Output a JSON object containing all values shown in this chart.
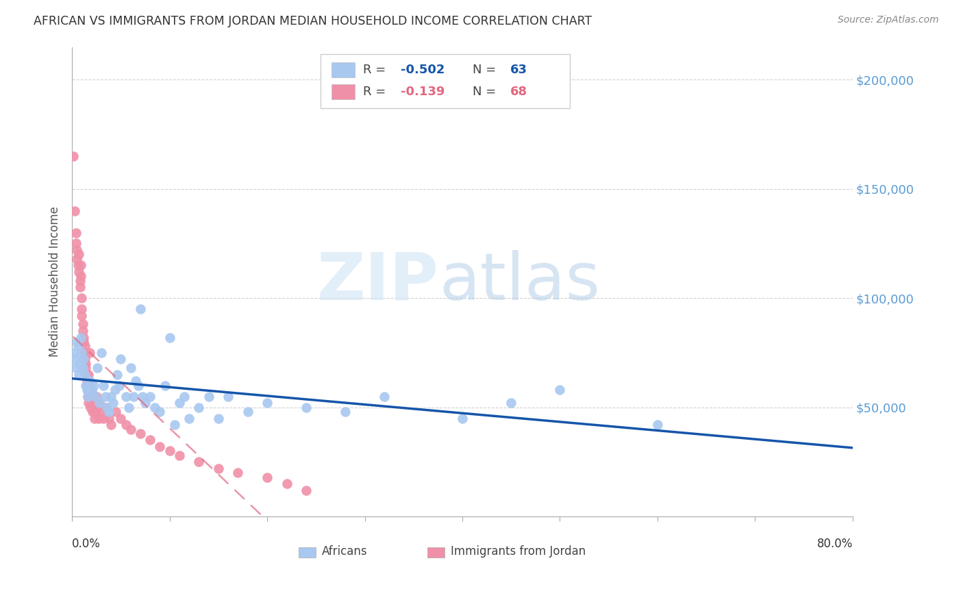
{
  "title": "AFRICAN VS IMMIGRANTS FROM JORDAN MEDIAN HOUSEHOLD INCOME CORRELATION CHART",
  "source": "Source: ZipAtlas.com",
  "ylabel": "Median Household Income",
  "ytick_labels": [
    "$200,000",
    "$150,000",
    "$100,000",
    "$50,000"
  ],
  "ytick_values": [
    200000,
    150000,
    100000,
    50000
  ],
  "ylim": [
    0,
    215000
  ],
  "xlim": [
    0.0,
    0.8
  ],
  "legend_blue_r": "-0.502",
  "legend_blue_n": "63",
  "legend_pink_r": "-0.139",
  "legend_pink_n": "68",
  "legend_label_blue": "Africans",
  "legend_label_pink": "Immigrants from Jordan",
  "scatter_blue": [
    [
      0.002,
      75000
    ],
    [
      0.003,
      72000
    ],
    [
      0.004,
      68000
    ],
    [
      0.005,
      80000
    ],
    [
      0.006,
      78000
    ],
    [
      0.007,
      65000
    ],
    [
      0.008,
      70000
    ],
    [
      0.009,
      82000
    ],
    [
      0.01,
      75000
    ],
    [
      0.011,
      68000
    ],
    [
      0.012,
      72000
    ],
    [
      0.013,
      65000
    ],
    [
      0.014,
      60000
    ],
    [
      0.015,
      58000
    ],
    [
      0.016,
      55000
    ],
    [
      0.018,
      62000
    ],
    [
      0.02,
      58000
    ],
    [
      0.022,
      60000
    ],
    [
      0.024,
      55000
    ],
    [
      0.026,
      68000
    ],
    [
      0.028,
      52000
    ],
    [
      0.03,
      75000
    ],
    [
      0.032,
      60000
    ],
    [
      0.034,
      55000
    ],
    [
      0.036,
      50000
    ],
    [
      0.038,
      48000
    ],
    [
      0.04,
      55000
    ],
    [
      0.042,
      52000
    ],
    [
      0.044,
      58000
    ],
    [
      0.046,
      65000
    ],
    [
      0.048,
      60000
    ],
    [
      0.05,
      72000
    ],
    [
      0.055,
      55000
    ],
    [
      0.058,
      50000
    ],
    [
      0.06,
      68000
    ],
    [
      0.063,
      55000
    ],
    [
      0.065,
      62000
    ],
    [
      0.068,
      60000
    ],
    [
      0.07,
      95000
    ],
    [
      0.072,
      55000
    ],
    [
      0.075,
      52000
    ],
    [
      0.08,
      55000
    ],
    [
      0.085,
      50000
    ],
    [
      0.09,
      48000
    ],
    [
      0.095,
      60000
    ],
    [
      0.1,
      82000
    ],
    [
      0.105,
      42000
    ],
    [
      0.11,
      52000
    ],
    [
      0.115,
      55000
    ],
    [
      0.12,
      45000
    ],
    [
      0.13,
      50000
    ],
    [
      0.14,
      55000
    ],
    [
      0.15,
      45000
    ],
    [
      0.16,
      55000
    ],
    [
      0.18,
      48000
    ],
    [
      0.2,
      52000
    ],
    [
      0.24,
      50000
    ],
    [
      0.28,
      48000
    ],
    [
      0.32,
      55000
    ],
    [
      0.4,
      45000
    ],
    [
      0.45,
      52000
    ],
    [
      0.5,
      58000
    ],
    [
      0.6,
      42000
    ]
  ],
  "scatter_pink": [
    [
      0.001,
      165000
    ],
    [
      0.003,
      140000
    ],
    [
      0.004,
      130000
    ],
    [
      0.004,
      125000
    ],
    [
      0.005,
      118000
    ],
    [
      0.005,
      122000
    ],
    [
      0.006,
      115000
    ],
    [
      0.007,
      120000
    ],
    [
      0.007,
      112000
    ],
    [
      0.008,
      108000
    ],
    [
      0.008,
      105000
    ],
    [
      0.009,
      115000
    ],
    [
      0.009,
      110000
    ],
    [
      0.01,
      100000
    ],
    [
      0.01,
      95000
    ],
    [
      0.01,
      92000
    ],
    [
      0.011,
      88000
    ],
    [
      0.011,
      85000
    ],
    [
      0.012,
      80000
    ],
    [
      0.012,
      82000
    ],
    [
      0.013,
      78000
    ],
    [
      0.013,
      75000
    ],
    [
      0.013,
      72000
    ],
    [
      0.014,
      70000
    ],
    [
      0.014,
      68000
    ],
    [
      0.015,
      65000
    ],
    [
      0.015,
      62000
    ],
    [
      0.015,
      60000
    ],
    [
      0.016,
      58000
    ],
    [
      0.016,
      55000
    ],
    [
      0.017,
      52000
    ],
    [
      0.017,
      65000
    ],
    [
      0.018,
      75000
    ],
    [
      0.018,
      60000
    ],
    [
      0.019,
      55000
    ],
    [
      0.019,
      50000
    ],
    [
      0.02,
      58000
    ],
    [
      0.02,
      52000
    ],
    [
      0.021,
      48000
    ],
    [
      0.022,
      55000
    ],
    [
      0.022,
      50000
    ],
    [
      0.023,
      45000
    ],
    [
      0.023,
      52000
    ],
    [
      0.024,
      48000
    ],
    [
      0.025,
      55000
    ],
    [
      0.026,
      50000
    ],
    [
      0.027,
      45000
    ],
    [
      0.028,
      52000
    ],
    [
      0.03,
      48000
    ],
    [
      0.032,
      45000
    ],
    [
      0.035,
      50000
    ],
    [
      0.038,
      45000
    ],
    [
      0.04,
      42000
    ],
    [
      0.045,
      48000
    ],
    [
      0.05,
      45000
    ],
    [
      0.055,
      42000
    ],
    [
      0.06,
      40000
    ],
    [
      0.07,
      38000
    ],
    [
      0.08,
      35000
    ],
    [
      0.09,
      32000
    ],
    [
      0.1,
      30000
    ],
    [
      0.11,
      28000
    ],
    [
      0.13,
      25000
    ],
    [
      0.15,
      22000
    ],
    [
      0.17,
      20000
    ],
    [
      0.2,
      18000
    ],
    [
      0.22,
      15000
    ],
    [
      0.24,
      12000
    ]
  ],
  "blue_color": "#A8C8F0",
  "pink_color": "#F090A8",
  "blue_line_color": "#1555AA",
  "pink_line_color": "#E06880",
  "background_color": "#ffffff",
  "title_color": "#333333",
  "axis_label_color": "#555555",
  "ytick_color": "#5B9BD5",
  "grid_color": "#CCCCCC",
  "source_color": "#888888"
}
